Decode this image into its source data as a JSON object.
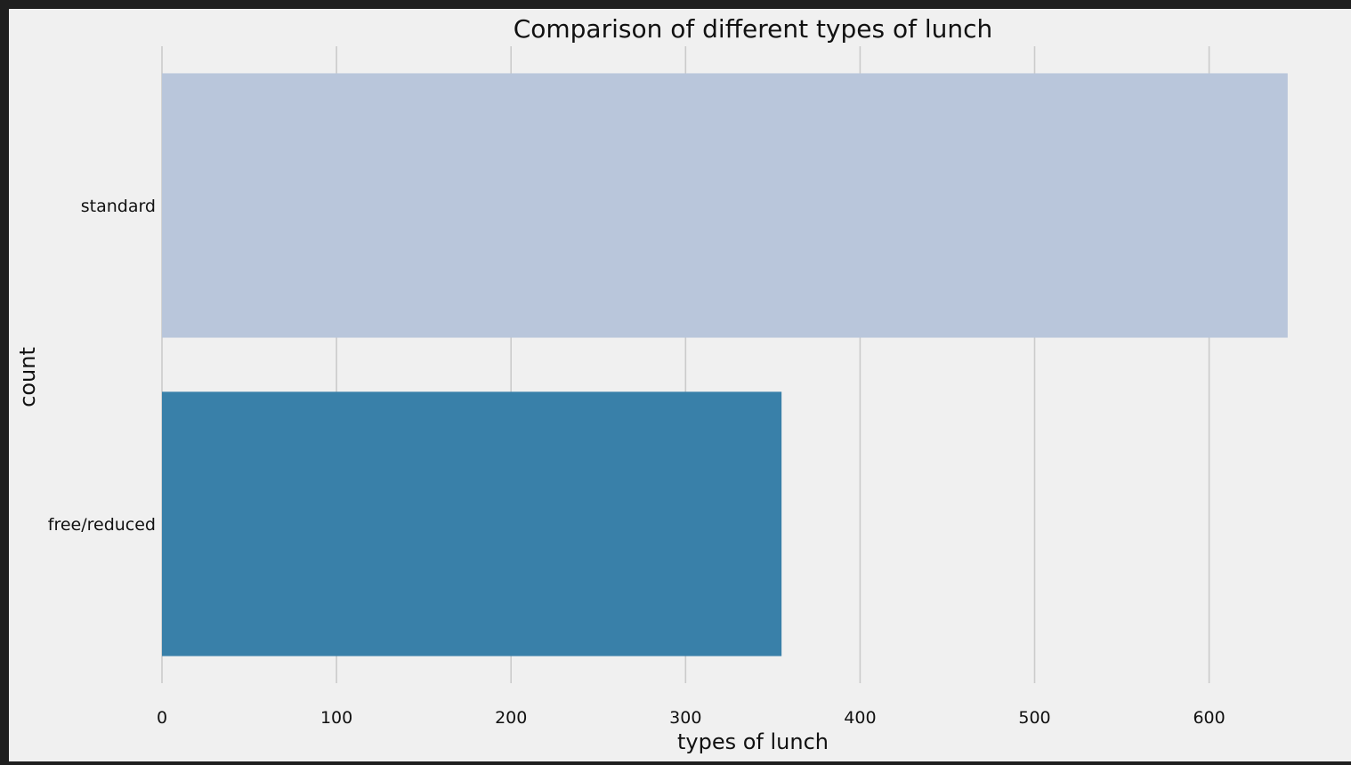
{
  "chart_data": {
    "type": "bar",
    "orientation": "horizontal",
    "title": "Comparison of different types of lunch",
    "xlabel": "types of lunch",
    "ylabel": "count",
    "categories": [
      "standard",
      "free/reduced"
    ],
    "values": [
      645,
      355
    ],
    "colors": [
      "#b9c6db",
      "#3980a9"
    ],
    "xlim": [
      0,
      660
    ],
    "xticks": [
      0,
      100,
      200,
      300,
      400,
      500,
      600
    ],
    "grid": "vertical",
    "background": "#f0f0f0"
  }
}
